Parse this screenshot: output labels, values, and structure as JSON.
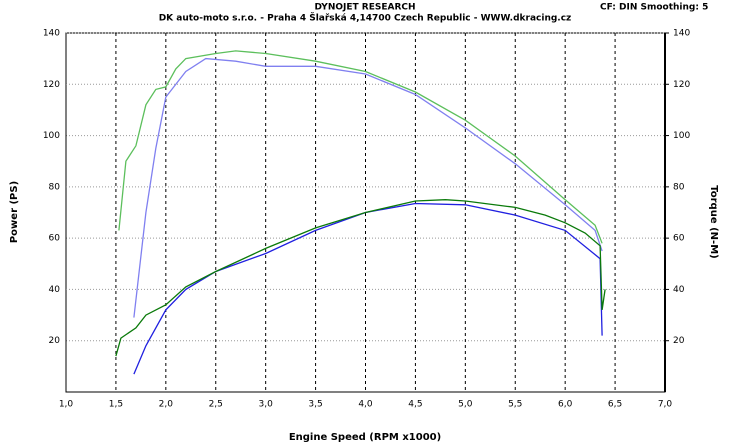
{
  "chart_data": {
    "type": "line",
    "title": "DYNOJET RESEARCH",
    "subtitle": "DK auto-moto s.r.o. - Praha 4 Šlařská 4,14700 Czech Republic  - WWW.dkracing.cz",
    "annotation": "CF: DIN  Smoothing: 5",
    "x_label": "Engine Speed (RPM x1000)",
    "y_label": "Power (PS)",
    "y2_label": "Torque (N-M)",
    "xlim": [
      1.0,
      7.0
    ],
    "xticks": [
      {
        "value": 1.0,
        "label": "1,0"
      },
      {
        "value": 1.5,
        "label": "1,5"
      },
      {
        "value": 2.0,
        "label": "2,0"
      },
      {
        "value": 2.5,
        "label": "2,5"
      },
      {
        "value": 3.0,
        "label": "3,0"
      },
      {
        "value": 3.5,
        "label": "3,5"
      },
      {
        "value": 4.0,
        "label": "4,0"
      },
      {
        "value": 4.5,
        "label": "4,5"
      },
      {
        "value": 5.0,
        "label": "5,0"
      },
      {
        "value": 5.5,
        "label": "5,5"
      },
      {
        "value": 6.0,
        "label": "6,0"
      },
      {
        "value": 6.5,
        "label": "6,5"
      },
      {
        "value": 7.0,
        "label": "7,0"
      }
    ],
    "ylim": [
      0,
      140
    ],
    "yticks": [
      20,
      40,
      60,
      80,
      100,
      120,
      140
    ],
    "y2lim": [
      0,
      140
    ],
    "y2ticks": [
      20,
      40,
      60,
      80,
      100,
      120,
      140
    ],
    "grid": true,
    "series": [
      {
        "color": "#8080f0",
        "axis": "y2",
        "x": [
          1.68,
          1.8,
          1.9,
          2.0,
          2.2,
          2.4,
          2.7,
          3.0,
          3.5,
          4.0,
          4.5,
          5.0,
          5.5,
          6.0,
          6.3,
          6.37
        ],
        "values": [
          29,
          70,
          95,
          115,
          125,
          130,
          129,
          127,
          127,
          124,
          116,
          103,
          89,
          73,
          63,
          55
        ]
      },
      {
        "color": "#5cbf5c",
        "axis": "y2",
        "x": [
          1.53,
          1.6,
          1.7,
          1.8,
          1.9,
          2.0,
          2.1,
          2.2,
          2.5,
          2.7,
          3.0,
          3.5,
          4.0,
          4.5,
          5.0,
          5.5,
          6.0,
          6.3,
          6.37
        ],
        "values": [
          63,
          90,
          96,
          112,
          118,
          119,
          126,
          130,
          132,
          133,
          132,
          129,
          125,
          117,
          106,
          92,
          75,
          65,
          58
        ]
      },
      {
        "color": "#2020e0",
        "x": [
          1.68,
          1.8,
          2.0,
          2.2,
          2.5,
          3.0,
          3.5,
          4.0,
          4.5,
          5.0,
          5.5,
          6.0,
          6.35,
          6.37
        ],
        "values": [
          7,
          18,
          32,
          40,
          47,
          54,
          63,
          70,
          73.5,
          73,
          69,
          63,
          52,
          22
        ]
      },
      {
        "color": "#0a7a0a",
        "x": [
          1.5,
          1.55,
          1.7,
          1.8,
          2.0,
          2.2,
          2.5,
          3.0,
          3.5,
          4.0,
          4.5,
          4.8,
          5.0,
          5.5,
          5.8,
          6.0,
          6.2,
          6.35,
          6.37,
          6.4
        ],
        "values": [
          14,
          21,
          25,
          30,
          34,
          41,
          47,
          56,
          64,
          70,
          74.5,
          75,
          74.5,
          72,
          69,
          66,
          62,
          57,
          32,
          40
        ]
      }
    ]
  }
}
